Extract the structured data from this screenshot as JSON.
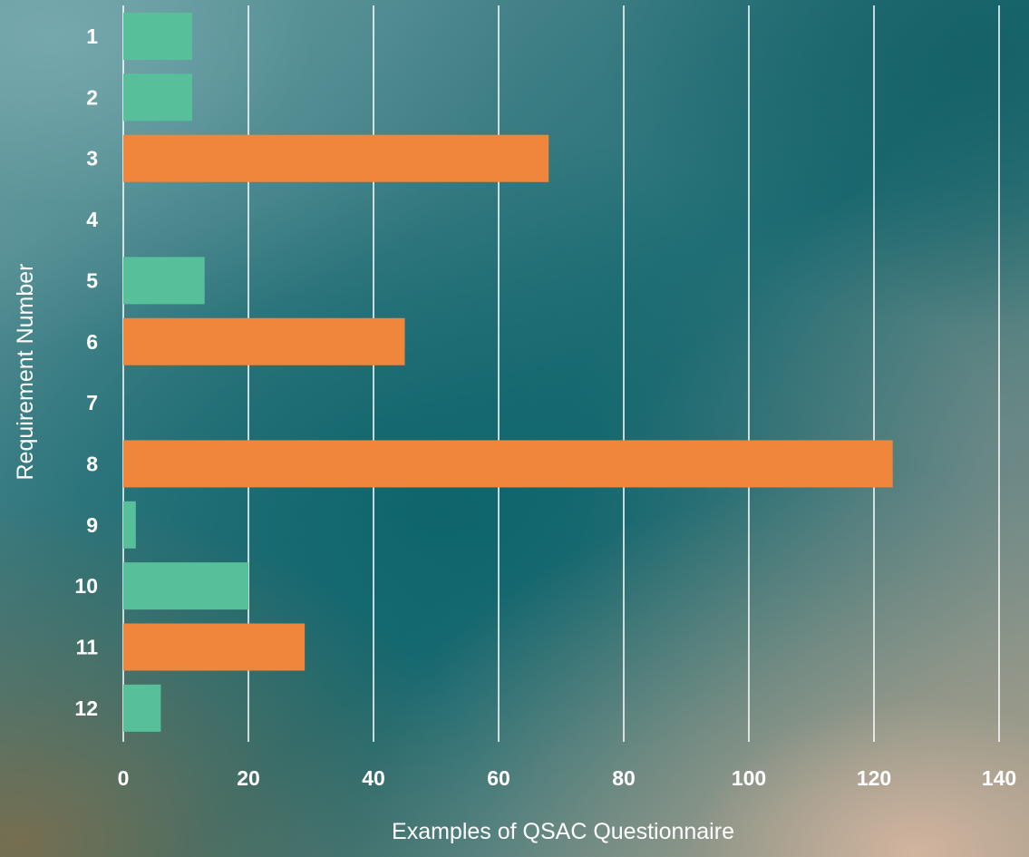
{
  "chart_data": {
    "type": "bar",
    "orientation": "horizontal",
    "title": "",
    "xlabel": "Examples of QSAC Questionnaire",
    "ylabel": "Requirement Number",
    "categories": [
      "1",
      "2",
      "3",
      "4",
      "5",
      "6",
      "7",
      "8",
      "9",
      "10",
      "11",
      "12"
    ],
    "values": [
      11,
      11,
      68,
      0,
      13,
      45,
      0,
      123,
      2,
      20,
      29,
      6
    ],
    "bar_colors": [
      "#57c09a",
      "#57c09a",
      "#f0853c",
      "#57c09a",
      "#57c09a",
      "#f0853c",
      "#57c09a",
      "#f0853c",
      "#57c09a",
      "#57c09a",
      "#f0853c",
      "#57c09a"
    ],
    "xlim": [
      0,
      140
    ],
    "xticks": [
      "0",
      "20",
      "40",
      "60",
      "80",
      "100",
      "120",
      "140"
    ],
    "grid": "vertical",
    "legend": "none"
  }
}
